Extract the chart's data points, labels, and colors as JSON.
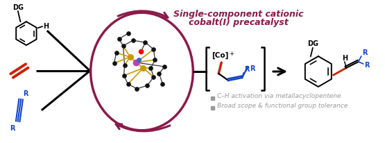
{
  "title_text1": "Single-component cationic",
  "title_text2": "cobalt(I) precatalyst",
  "title_color": "#8B1A4A",
  "bullet1": "C–H activation via metallacyclopentene",
  "bullet2": "Broad scope & functional group tolerance",
  "bullet_color": "#999999",
  "bg_color": "#ffffff",
  "arrow_color": "#8B1A4A",
  "black": "#000000",
  "red_color": "#CC2200",
  "blue_color": "#1144CC",
  "bond_gold": "#CC9900",
  "dot_black": "#111111",
  "fig_width": 5.55,
  "fig_height": 2.07,
  "dpi": 100
}
